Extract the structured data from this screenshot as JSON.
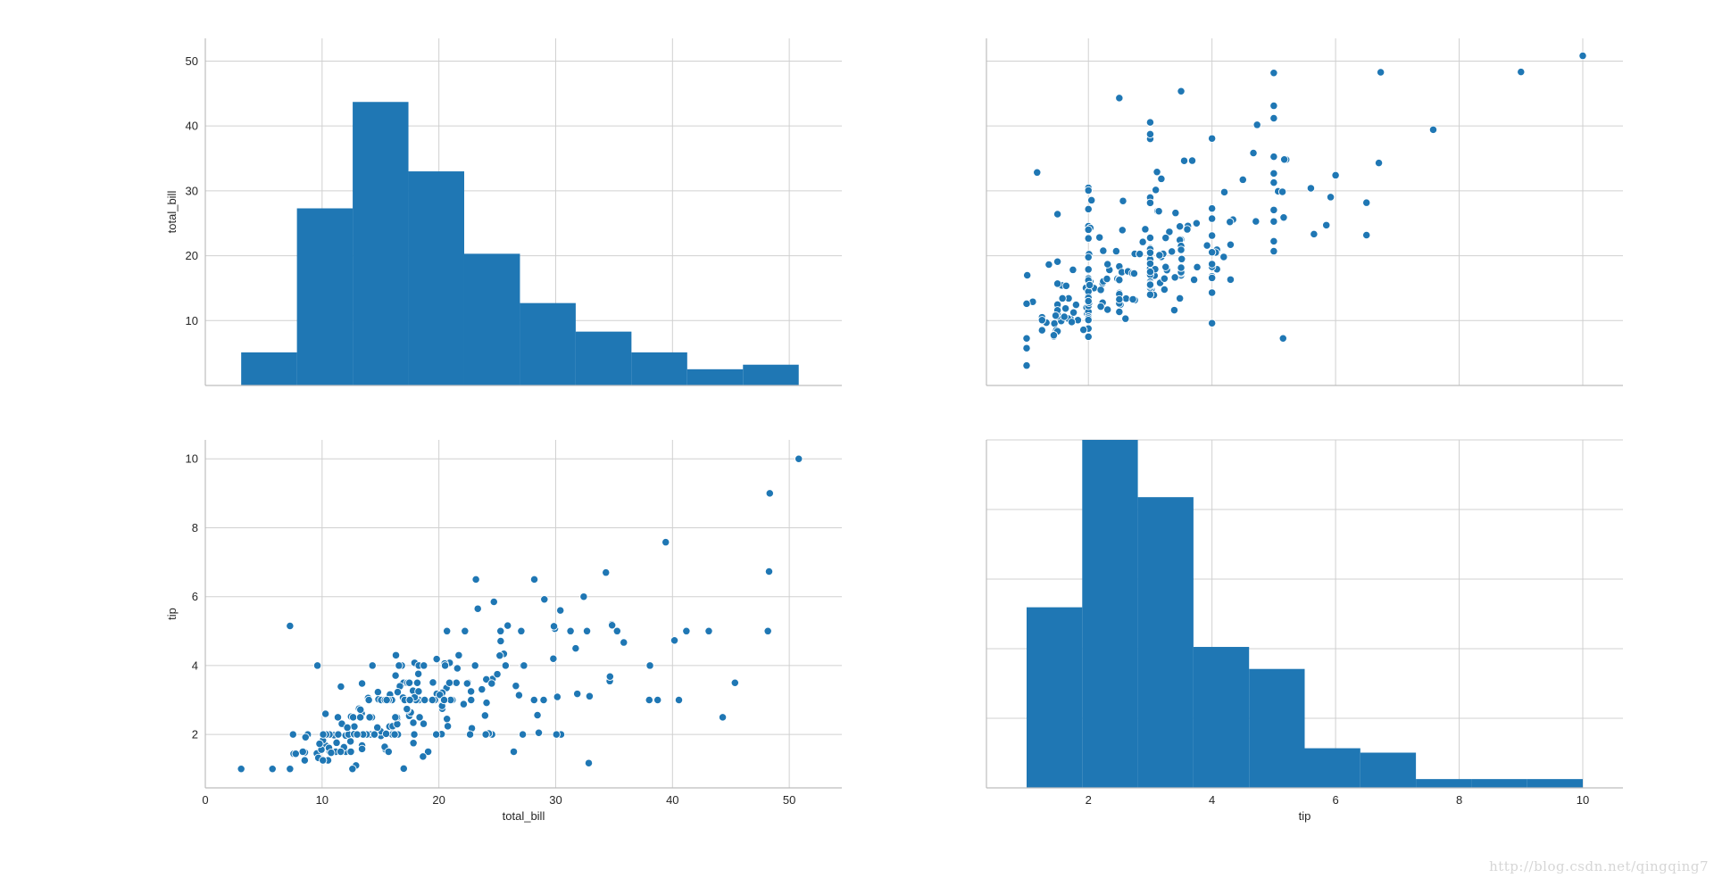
{
  "watermark": "http://blog.csdn.net/qingqing7",
  "colors": {
    "accent": "#1f77b4",
    "grid": "#d0d0d0",
    "spine": "#bdbdbd"
  },
  "chart_data": [
    {
      "id": "hist-total-bill",
      "type": "bar",
      "panel": "top-left",
      "ylabel": "total_bill",
      "bin_edges": [
        3.07,
        7.844,
        12.618,
        17.392,
        22.166,
        26.94,
        31.714,
        36.488,
        41.262,
        46.036,
        50.81
      ],
      "values": [
        5.1,
        27.3,
        43.7,
        33.0,
        20.3,
        12.7,
        8.3,
        5.1,
        2.5,
        3.2
      ],
      "xlim": [
        0,
        54.5
      ],
      "ylim": [
        0,
        53.5
      ],
      "yticks": [
        10,
        20,
        30,
        40,
        50
      ],
      "xgrid": [
        10,
        20,
        30,
        40,
        50
      ],
      "show_xticklabels": false,
      "show_yticklabels": true
    },
    {
      "id": "scatter-tip-vs-total-bill",
      "type": "scatter",
      "panel": "top-right",
      "x_var": "tip",
      "y_var": "total_bill",
      "points": [
        [
          1.01,
          16.99
        ],
        [
          1.66,
          10.34
        ],
        [
          3.5,
          21.01
        ],
        [
          3.31,
          23.68
        ],
        [
          3.61,
          24.59
        ],
        [
          4.71,
          25.29
        ],
        [
          2.0,
          8.77
        ],
        [
          3.12,
          26.88
        ],
        [
          1.96,
          15.04
        ],
        [
          3.23,
          14.78
        ],
        [
          1.71,
          10.27
        ],
        [
          5.0,
          35.26
        ],
        [
          1.57,
          15.42
        ],
        [
          3.0,
          18.43
        ],
        [
          3.02,
          14.83
        ],
        [
          3.92,
          21.58
        ],
        [
          1.67,
          10.33
        ],
        [
          3.71,
          16.29
        ],
        [
          3.5,
          16.97
        ],
        [
          3.35,
          20.65
        ],
        [
          4.08,
          17.92
        ],
        [
          2.75,
          20.29
        ],
        [
          2.23,
          15.77
        ],
        [
          7.58,
          39.42
        ],
        [
          3.18,
          19.82
        ],
        [
          2.34,
          17.81
        ],
        [
          2.0,
          13.37
        ],
        [
          2.0,
          12.69
        ],
        [
          4.3,
          21.7
        ],
        [
          3.0,
          19.65
        ],
        [
          1.45,
          9.55
        ],
        [
          2.5,
          18.35
        ],
        [
          3.0,
          15.06
        ],
        [
          2.45,
          20.69
        ],
        [
          3.27,
          17.78
        ],
        [
          3.6,
          24.06
        ],
        [
          2.0,
          16.31
        ],
        [
          3.07,
          16.93
        ],
        [
          2.31,
          18.69
        ],
        [
          5.0,
          31.27
        ],
        [
          2.24,
          16.04
        ],
        [
          2.54,
          17.46
        ],
        [
          3.06,
          13.94
        ],
        [
          1.32,
          9.68
        ],
        [
          5.6,
          30.4
        ],
        [
          3.0,
          18.29
        ],
        [
          5.0,
          22.23
        ],
        [
          6.0,
          32.4
        ],
        [
          2.05,
          28.55
        ],
        [
          3.0,
          18.04
        ],
        [
          2.5,
          12.54
        ],
        [
          2.6,
          10.29
        ],
        [
          5.2,
          34.81
        ],
        [
          1.56,
          9.94
        ],
        [
          4.34,
          25.56
        ],
        [
          3.51,
          19.49
        ],
        [
          3.0,
          38.01
        ],
        [
          1.5,
          26.41
        ],
        [
          1.76,
          11.24
        ],
        [
          6.73,
          48.27
        ],
        [
          3.21,
          20.29
        ],
        [
          2.0,
          13.81
        ],
        [
          1.98,
          11.02
        ],
        [
          3.76,
          18.29
        ],
        [
          2.64,
          17.59
        ],
        [
          3.15,
          20.08
        ],
        [
          2.47,
          16.45
        ],
        [
          1.0,
          3.07
        ],
        [
          2.01,
          20.23
        ],
        [
          2.09,
          15.01
        ],
        [
          1.97,
          12.02
        ],
        [
          3.0,
          17.07
        ],
        [
          3.14,
          26.86
        ],
        [
          5.0,
          25.28
        ],
        [
          2.2,
          14.73
        ],
        [
          1.25,
          10.51
        ],
        [
          3.08,
          17.92
        ],
        [
          4.0,
          27.2
        ],
        [
          3.0,
          22.76
        ],
        [
          2.71,
          17.29
        ],
        [
          3.0,
          19.44
        ],
        [
          3.4,
          16.66
        ],
        [
          1.83,
          10.07
        ],
        [
          5.0,
          32.68
        ],
        [
          2.03,
          15.98
        ],
        [
          5.17,
          34.83
        ],
        [
          2.0,
          13.03
        ],
        [
          4.0,
          18.28
        ],
        [
          5.85,
          24.71
        ],
        [
          3.0,
          21.16
        ],
        [
          3.0,
          28.97
        ],
        [
          3.5,
          22.49
        ],
        [
          1.0,
          5.75
        ],
        [
          4.3,
          16.32
        ],
        [
          3.25,
          22.75
        ],
        [
          4.73,
          40.17
        ],
        [
          4.0,
          27.28
        ],
        [
          1.5,
          12.03
        ],
        [
          3.0,
          21.01
        ],
        [
          1.5,
          12.46
        ],
        [
          2.5,
          11.35
        ],
        [
          3.0,
          15.38
        ],
        [
          2.5,
          44.3
        ],
        [
          3.48,
          22.42
        ],
        [
          4.08,
          20.92
        ],
        [
          1.64,
          15.36
        ],
        [
          4.06,
          20.49
        ],
        [
          4.29,
          25.21
        ],
        [
          3.76,
          18.24
        ],
        [
          4.0,
          14.31
        ],
        [
          3.0,
          14.0
        ],
        [
          1.0,
          7.25
        ],
        [
          4.0,
          38.07
        ],
        [
          2.55,
          23.95
        ],
        [
          4.0,
          25.71
        ],
        [
          3.5,
          17.31
        ],
        [
          5.07,
          29.93
        ],
        [
          1.5,
          10.65
        ],
        [
          1.8,
          12.43
        ],
        [
          2.92,
          24.08
        ],
        [
          2.31,
          11.69
        ],
        [
          1.68,
          13.42
        ],
        [
          2.5,
          14.26
        ],
        [
          2.0,
          15.95
        ],
        [
          2.52,
          12.48
        ],
        [
          4.2,
          29.8
        ],
        [
          1.48,
          8.52
        ],
        [
          2.0,
          14.52
        ],
        [
          2.0,
          11.38
        ],
        [
          2.18,
          22.82
        ],
        [
          1.5,
          19.08
        ],
        [
          2.83,
          20.27
        ],
        [
          1.5,
          11.17
        ],
        [
          2.0,
          12.26
        ],
        [
          3.25,
          18.26
        ],
        [
          1.25,
          8.51
        ],
        [
          2.0,
          10.33
        ],
        [
          2.0,
          14.15
        ],
        [
          2.0,
          16.0
        ],
        [
          2.75,
          13.16
        ],
        [
          3.5,
          17.47
        ],
        [
          6.7,
          34.3
        ],
        [
          5.0,
          41.19
        ],
        [
          5.0,
          27.05
        ],
        [
          2.3,
          16.43
        ],
        [
          1.5,
          8.35
        ],
        [
          1.36,
          18.64
        ],
        [
          1.63,
          11.87
        ],
        [
          1.73,
          9.78
        ],
        [
          2.0,
          7.51
        ],
        [
          2.5,
          14.07
        ],
        [
          2.0,
          13.13
        ],
        [
          2.74,
          17.26
        ],
        [
          2.0,
          24.55
        ],
        [
          2.0,
          19.77
        ],
        [
          5.14,
          29.85
        ],
        [
          5.0,
          48.17
        ],
        [
          3.75,
          25.0
        ],
        [
          2.61,
          13.39
        ],
        [
          2.0,
          16.49
        ],
        [
          3.5,
          21.5
        ],
        [
          2.5,
          12.66
        ],
        [
          2.0,
          16.21
        ],
        [
          2.0,
          13.81
        ],
        [
          3.0,
          17.51
        ],
        [
          3.48,
          24.52
        ],
        [
          2.24,
          20.76
        ],
        [
          4.5,
          31.71
        ],
        [
          1.61,
          10.59
        ],
        [
          2.0,
          10.63
        ],
        [
          10.0,
          50.81
        ],
        [
          3.16,
          15.81
        ],
        [
          5.15,
          7.25
        ],
        [
          3.18,
          31.85
        ],
        [
          4.0,
          16.82
        ],
        [
          3.11,
          32.9
        ],
        [
          2.0,
          17.89
        ],
        [
          2.0,
          14.48
        ],
        [
          4.0,
          9.6
        ],
        [
          3.55,
          34.63
        ],
        [
          3.68,
          34.65
        ],
        [
          5.65,
          23.33
        ],
        [
          3.5,
          45.35
        ],
        [
          6.5,
          23.17
        ],
        [
          3.0,
          40.55
        ],
        [
          5.0,
          20.69
        ],
        [
          3.5,
          20.9
        ],
        [
          2.0,
          30.46
        ],
        [
          3.5,
          18.15
        ],
        [
          4.0,
          23.1
        ],
        [
          1.5,
          15.69
        ],
        [
          4.19,
          19.81
        ],
        [
          2.56,
          28.44
        ],
        [
          2.02,
          15.48
        ],
        [
          4.0,
          16.58
        ],
        [
          1.44,
          7.56
        ],
        [
          2.0,
          10.34
        ],
        [
          5.0,
          43.11
        ],
        [
          2.0,
          13.0
        ],
        [
          2.0,
          13.51
        ],
        [
          4.0,
          18.71
        ],
        [
          2.01,
          12.74
        ],
        [
          2.0,
          13.0
        ],
        [
          2.5,
          16.4
        ],
        [
          4.0,
          20.53
        ],
        [
          3.23,
          16.47
        ],
        [
          3.41,
          26.59
        ],
        [
          3.0,
          38.73
        ],
        [
          2.03,
          24.27
        ],
        [
          2.23,
          12.76
        ],
        [
          2.0,
          30.06
        ],
        [
          5.16,
          25.89
        ],
        [
          9.0,
          48.33
        ],
        [
          2.5,
          13.27
        ],
        [
          6.5,
          28.17
        ],
        [
          1.1,
          12.9
        ],
        [
          3.0,
          28.15
        ],
        [
          1.5,
          11.59
        ],
        [
          1.44,
          7.74
        ],
        [
          3.09,
          30.14
        ],
        [
          2.2,
          12.16
        ],
        [
          3.48,
          13.42
        ],
        [
          1.92,
          8.58
        ],
        [
          3.0,
          15.98
        ],
        [
          1.58,
          13.42
        ],
        [
          2.5,
          16.27
        ],
        [
          2.0,
          10.09
        ],
        [
          3.0,
          20.45
        ],
        [
          2.72,
          13.28
        ],
        [
          2.88,
          22.12
        ],
        [
          2.0,
          24.01
        ],
        [
          3.0,
          15.69
        ],
        [
          3.39,
          11.61
        ],
        [
          1.47,
          10.77
        ],
        [
          3.0,
          15.53
        ],
        [
          1.25,
          10.07
        ],
        [
          1.0,
          12.6
        ],
        [
          1.17,
          32.83
        ],
        [
          4.67,
          35.83
        ],
        [
          5.92,
          29.03
        ],
        [
          2.0,
          27.18
        ],
        [
          2.0,
          22.67
        ],
        [
          1.75,
          17.82
        ],
        [
          3.0,
          18.78
        ]
      ],
      "xlim": [
        0.35,
        10.65
      ],
      "ylim": [
        0,
        53.5
      ],
      "xgrid": [
        2,
        4,
        6,
        8,
        10
      ],
      "ygrid": [
        10,
        20,
        30,
        40,
        50
      ],
      "show_xticklabels": false,
      "show_yticklabels": false
    },
    {
      "id": "scatter-total-bill-vs-tip",
      "type": "scatter",
      "panel": "bottom-left",
      "x_var": "total_bill",
      "y_var": "tip",
      "xlabel": "total_bill",
      "ylabel": "tip",
      "xlim": [
        0,
        54.5
      ],
      "ylim": [
        0.45,
        10.55
      ],
      "xticks": [
        0,
        10,
        20,
        30,
        40,
        50
      ],
      "yticks": [
        2,
        4,
        6,
        8,
        10
      ],
      "show_xticklabels": true,
      "show_yticklabels": true
    },
    {
      "id": "hist-tip",
      "type": "bar",
      "panel": "bottom-right",
      "xlabel": "tip",
      "bin_edges": [
        1.0,
        1.9,
        2.8,
        3.7,
        4.6,
        5.5,
        6.4,
        7.3,
        8.2,
        9.1,
        10.0
      ],
      "values": [
        41,
        79,
        66,
        32,
        27,
        9,
        8,
        2,
        2,
        2
      ],
      "xlim": [
        0.35,
        10.65
      ],
      "ylim": [
        0,
        79
      ],
      "xticks": [
        2,
        4,
        6,
        8,
        10
      ],
      "ygrid_fraction": [
        0.2,
        0.4,
        0.6,
        0.8,
        1.0
      ],
      "show_xticklabels": true,
      "show_yticklabels": false
    }
  ]
}
